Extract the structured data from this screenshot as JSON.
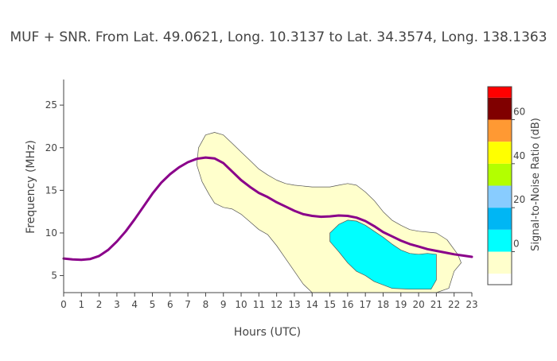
{
  "chart_data": {
    "type": "contour",
    "title": "MUF + SNR. From Lat. 49.0621, Long. 10.3137 to Lat. 34.3574, Long. 138.1363",
    "xlabel": "Hours (UTC)",
    "ylabel": "Frequency (MHz)",
    "xlim": [
      0,
      23
    ],
    "ylim": [
      3,
      28
    ],
    "x_ticks": [
      "0",
      "1",
      "2",
      "3",
      "4",
      "5",
      "6",
      "7",
      "8",
      "9",
      "10",
      "11",
      "12",
      "13",
      "14",
      "15",
      "16",
      "17",
      "18",
      "19",
      "20",
      "21",
      "22",
      "23"
    ],
    "y_ticks": [
      "5",
      "10",
      "15",
      "20",
      "25"
    ],
    "y_tick_values": [
      5,
      10,
      15,
      20,
      25
    ],
    "colorbar": {
      "title": "Signal-to-Noise Ratio (dB)",
      "range": [
        -15,
        75
      ],
      "tick_labels": [
        "0",
        "20",
        "40",
        "60"
      ],
      "tick_values": [
        0,
        20,
        40,
        60
      ],
      "bands": [
        {
          "from": -15,
          "to": -10,
          "color": "#ffffff"
        },
        {
          "from": -10,
          "to": 0,
          "color": "#ffffcc"
        },
        {
          "from": 0,
          "to": 10,
          "color": "#00ffff"
        },
        {
          "from": 10,
          "to": 20,
          "color": "#00b6f4"
        },
        {
          "from": 20,
          "to": 30,
          "color": "#88ccff"
        },
        {
          "from": 30,
          "to": 40,
          "color": "#b3ff00"
        },
        {
          "from": 40,
          "to": 50,
          "color": "#ffff00"
        },
        {
          "from": 50,
          "to": 60,
          "color": "#ff9933"
        },
        {
          "from": 60,
          "to": 70,
          "color": "#800000"
        },
        {
          "from": 70,
          "to": 75,
          "color": "#ff0000"
        }
      ]
    },
    "snr_regions": [
      {
        "level": "-10 to 0 dB",
        "color": "#ffffcc",
        "polygon": [
          [
            7.5,
            18
          ],
          [
            7.6,
            20
          ],
          [
            8.0,
            21.5
          ],
          [
            8.5,
            21.8
          ],
          [
            9.0,
            21.5
          ],
          [
            9.5,
            20.5
          ],
          [
            10.0,
            19.5
          ],
          [
            10.5,
            18.5
          ],
          [
            11.0,
            17.5
          ],
          [
            11.5,
            16.8
          ],
          [
            12.0,
            16.2
          ],
          [
            12.5,
            15.8
          ],
          [
            13.0,
            15.6
          ],
          [
            14.0,
            15.4
          ],
          [
            15.0,
            15.4
          ],
          [
            15.5,
            15.6
          ],
          [
            16.0,
            15.8
          ],
          [
            16.5,
            15.6
          ],
          [
            17.0,
            14.8
          ],
          [
            17.5,
            13.8
          ],
          [
            18.0,
            12.5
          ],
          [
            18.5,
            11.5
          ],
          [
            19.0,
            10.9
          ],
          [
            19.5,
            10.4
          ],
          [
            20.0,
            10.2
          ],
          [
            21.0,
            10.0
          ],
          [
            21.6,
            9.2
          ],
          [
            22.2,
            7.5
          ],
          [
            22.4,
            6.5
          ],
          [
            22.0,
            5.5
          ],
          [
            21.7,
            3.5
          ],
          [
            21.0,
            3.0
          ],
          [
            14.0,
            3.0
          ],
          [
            13.5,
            4.0
          ],
          [
            13.0,
            5.5
          ],
          [
            12.5,
            7.0
          ],
          [
            12.0,
            8.5
          ],
          [
            11.5,
            9.8
          ],
          [
            11.0,
            10.4
          ],
          [
            10.5,
            11.3
          ],
          [
            10.0,
            12.2
          ],
          [
            9.5,
            12.8
          ],
          [
            9.0,
            13.0
          ],
          [
            8.5,
            13.5
          ],
          [
            8.2,
            14.5
          ],
          [
            7.8,
            16.0
          ],
          [
            7.5,
            18.0
          ]
        ]
      },
      {
        "level": "0 to 10 dB",
        "color": "#00ffff",
        "polygon": [
          [
            15.0,
            10.0
          ],
          [
            15.5,
            11.0
          ],
          [
            16.0,
            11.5
          ],
          [
            16.5,
            11.4
          ],
          [
            17.0,
            10.9
          ],
          [
            17.5,
            10.2
          ],
          [
            18.0,
            9.5
          ],
          [
            18.5,
            8.7
          ],
          [
            19.0,
            8.0
          ],
          [
            19.5,
            7.6
          ],
          [
            20.0,
            7.5
          ],
          [
            20.5,
            7.6
          ],
          [
            21.0,
            7.5
          ],
          [
            21.0,
            4.5
          ],
          [
            20.7,
            3.4
          ],
          [
            19.5,
            3.4
          ],
          [
            18.5,
            3.5
          ],
          [
            17.5,
            4.3
          ],
          [
            17.0,
            5.0
          ],
          [
            16.5,
            5.5
          ],
          [
            16.0,
            6.5
          ],
          [
            15.5,
            7.8
          ],
          [
            15.0,
            9.0
          ],
          [
            15.0,
            10.0
          ]
        ]
      }
    ],
    "series": [
      {
        "name": "MUF",
        "color": "#8a008a",
        "x": [
          0,
          0.5,
          1,
          1.5,
          2,
          2.5,
          3,
          3.5,
          4,
          4.5,
          5,
          5.5,
          6,
          6.5,
          7,
          7.5,
          8,
          8.5,
          9,
          9.5,
          10,
          10.5,
          11,
          11.5,
          12,
          12.5,
          13,
          13.5,
          14,
          14.5,
          15,
          15.5,
          16,
          16.5,
          17,
          17.5,
          18,
          18.5,
          19,
          19.5,
          20,
          20.5,
          21,
          21.5,
          22,
          22.5,
          23
        ],
        "y": [
          7.0,
          6.9,
          6.85,
          6.95,
          7.3,
          8.0,
          9.0,
          10.2,
          11.6,
          13.1,
          14.6,
          15.9,
          16.9,
          17.7,
          18.3,
          18.7,
          18.85,
          18.75,
          18.2,
          17.2,
          16.2,
          15.4,
          14.7,
          14.2,
          13.6,
          13.1,
          12.6,
          12.2,
          12.0,
          11.9,
          11.95,
          12.05,
          12.0,
          11.8,
          11.4,
          10.8,
          10.1,
          9.6,
          9.1,
          8.7,
          8.4,
          8.1,
          7.9,
          7.7,
          7.5,
          7.35,
          7.2
        ]
      }
    ]
  }
}
